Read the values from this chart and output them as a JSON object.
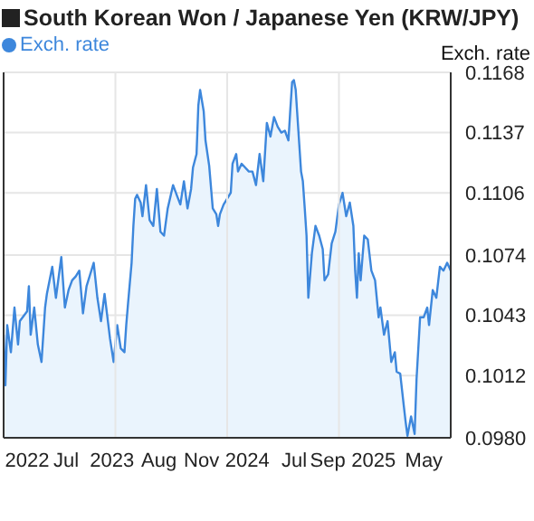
{
  "chart_data": {
    "type": "area",
    "title": "South Korean Won / Japanese Yen (KRW/JPY)",
    "ylabel": "Exch. rate",
    "legend": "top left",
    "grid": "y",
    "marker": "none",
    "line_style": "solid",
    "xlim": [
      2022,
      2026
    ],
    "xticks": [
      {
        "value": 2022.21,
        "label": "2022"
      },
      {
        "value": 2022.56,
        "label": "Jul"
      },
      {
        "value": 2022.97,
        "label": "2023"
      },
      {
        "value": 2023.39,
        "label": "Aug"
      },
      {
        "value": 2023.77,
        "label": "Nov"
      },
      {
        "value": 2024.18,
        "label": "2024"
      },
      {
        "value": 2024.6,
        "label": "Jul"
      },
      {
        "value": 2024.9,
        "label": "Sep"
      },
      {
        "value": 2025.31,
        "label": "2025"
      },
      {
        "value": 2025.76,
        "label": "May"
      }
    ],
    "ylim": [
      0.098,
      0.1168
    ],
    "yticks": [
      {
        "value": 0.098,
        "label": "0.0980"
      },
      0.1012,
      0.1043,
      0.1074,
      0.1106,
      0.1137,
      0.1168
    ],
    "ref_lines": [
      {
        "axis": "x",
        "value": 2023,
        "color": "#e6e6e6"
      },
      {
        "axis": "x",
        "value": 2024,
        "color": "#e6e6e6"
      },
      {
        "axis": "x",
        "value": 2025,
        "color": "#e6e6e6"
      }
    ],
    "series": [
      {
        "name": "Exch. rate",
        "color": "#3d87dc",
        "x": [
          2022,
          2022.016,
          2022.032,
          2022.065,
          2022.097,
          2022.129,
          2022.145,
          2022.21,
          2022.226,
          2022.242,
          2022.274,
          2022.306,
          2022.339,
          2022.371,
          2022.387,
          2022.435,
          2022.468,
          2022.5,
          2022.516,
          2022.548,
          2022.581,
          2022.613,
          2022.645,
          2022.677,
          2022.71,
          2022.742,
          2022.774,
          2022.806,
          2022.839,
          2022.871,
          2022.903,
          2022.952,
          2022.984,
          2023.016,
          2023.048,
          2023.081,
          2023.097,
          2023.113,
          2023.145,
          2023.161,
          2023.177,
          2023.194,
          2023.226,
          2023.242,
          2023.274,
          2023.306,
          2023.339,
          2023.371,
          2023.403,
          2023.435,
          2023.468,
          2023.516,
          2023.548,
          2023.581,
          2023.613,
          2023.645,
          2023.677,
          2023.694,
          2023.726,
          2023.742,
          2023.758,
          2023.79,
          2023.806,
          2023.839,
          2023.871,
          2023.903,
          2023.919,
          2023.935,
          2023.968,
          2024,
          2024.032,
          2024.048,
          2024.081,
          2024.097,
          2024.129,
          2024.161,
          2024.194,
          2024.226,
          2024.258,
          2024.29,
          2024.323,
          2024.355,
          2024.387,
          2024.419,
          2024.452,
          2024.484,
          2024.516,
          2024.548,
          2024.565,
          2024.581,
          2024.597,
          2024.613,
          2024.645,
          2024.661,
          2024.677,
          2024.694,
          2024.71,
          2024.726,
          2024.758,
          2024.79,
          2024.823,
          2024.855,
          2024.871,
          2024.903,
          2024.935,
          2024.968,
          2025,
          2025.032,
          2025.065,
          2025.097,
          2025.129,
          2025.145,
          2025.161,
          2025.177,
          2025.194,
          2025.226,
          2025.258,
          2025.29,
          2025.323,
          2025.355,
          2025.371,
          2025.403,
          2025.435,
          2025.468,
          2025.5,
          2025.516,
          2025.548,
          2025.581,
          2025.597,
          2025.613,
          2025.645,
          2025.677,
          2025.694,
          2025.726,
          2025.758,
          2025.79,
          2025.806,
          2025.839,
          2025.871,
          2025.903,
          2025.935,
          2025.968,
          2026
        ],
        "values": [
          0.1033,
          0.1007,
          0.1038,
          0.1024,
          0.1047,
          0.1028,
          0.104,
          0.1045,
          0.1058,
          0.1033,
          0.1047,
          0.1028,
          0.1019,
          0.1047,
          0.1054,
          0.1068,
          0.1052,
          0.1066,
          0.1073,
          0.1047,
          0.1056,
          0.1061,
          0.1063,
          0.1066,
          0.1044,
          0.1058,
          0.1064,
          0.107,
          0.1052,
          0.104,
          0.1054,
          0.1031,
          0.1019,
          0.1038,
          0.1026,
          0.1024,
          0.1038,
          0.1049,
          0.107,
          0.1089,
          0.1103,
          0.1105,
          0.1101,
          0.1094,
          0.111,
          0.1092,
          0.1089,
          0.1108,
          0.1086,
          0.1084,
          0.1098,
          0.111,
          0.1105,
          0.11,
          0.1112,
          0.1098,
          0.1108,
          0.1119,
          0.1126,
          0.1151,
          0.1159,
          0.1148,
          0.1133,
          0.112,
          0.1098,
          0.1095,
          0.1089,
          0.1095,
          0.11,
          0.1103,
          0.1106,
          0.1121,
          0.1126,
          0.1117,
          0.1121,
          0.1119,
          0.1117,
          0.1117,
          0.111,
          0.1126,
          0.1112,
          0.1142,
          0.1135,
          0.1145,
          0.114,
          0.1137,
          0.1138,
          0.1133,
          0.1149,
          0.1163,
          0.1164,
          0.1159,
          0.1131,
          0.1117,
          0.1112,
          0.1098,
          0.1084,
          0.1052,
          0.1075,
          0.1089,
          0.1084,
          0.1077,
          0.1061,
          0.1064,
          0.108,
          0.1086,
          0.11,
          0.1106,
          0.1094,
          0.1101,
          0.1089,
          0.1066,
          0.1052,
          0.1075,
          0.1061,
          0.1084,
          0.1082,
          0.1066,
          0.1061,
          0.1042,
          0.1047,
          0.1033,
          0.104,
          0.1019,
          0.1024,
          0.1014,
          0.1013,
          0.0996,
          0.0988,
          0.0981,
          0.0991,
          0.0982,
          0.101,
          0.1042,
          0.1042,
          0.1047,
          0.1038,
          0.1056,
          0.1052,
          0.1068,
          0.1066,
          0.107,
          0.1066
        ]
      }
    ]
  }
}
